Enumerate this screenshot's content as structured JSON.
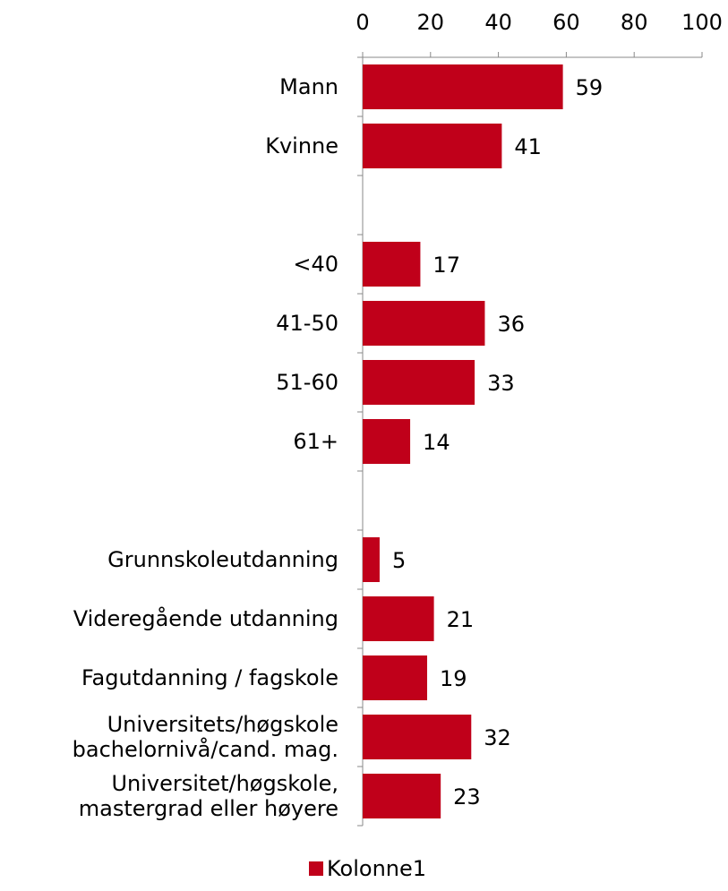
{
  "chart_data": {
    "type": "barh",
    "categories": [
      "Mann",
      "Kvinne",
      null,
      "<40",
      "41-50",
      "51-60",
      "61+",
      null,
      "Grunnskoleutdanning",
      "Videregående utdanning",
      "Fagutdanning / fagskole",
      "Universitets/høgskole\nbachelornivå/cand. mag.",
      "Universitet/høgskole,\nmastergrad eller høyere"
    ],
    "series": [
      {
        "name": "Kolonne1",
        "color": "#c0001a",
        "values": [
          59,
          41,
          null,
          17,
          36,
          33,
          14,
          null,
          5,
          21,
          19,
          32,
          23
        ]
      }
    ],
    "xlim": [
      0,
      100
    ],
    "xticks": [
      0,
      20,
      40,
      60,
      80,
      100
    ],
    "legend": "bottom"
  }
}
